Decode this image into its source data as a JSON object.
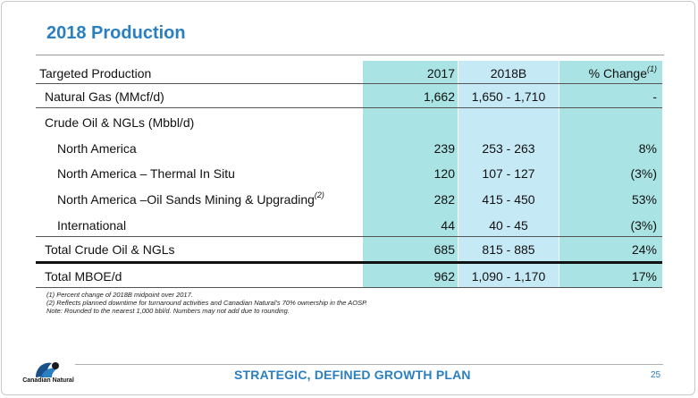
{
  "title": "2018 Production",
  "table": {
    "header": {
      "label": "Targeted Production",
      "c2017": "2017",
      "c2018": "2018B",
      "cpct": "% Change",
      "cpct_note": "(1)"
    },
    "rows": [
      {
        "label": "Natural Gas (MMcf/d)",
        "v2017": "1,662",
        "v2018": "1,650 - 1,710",
        "pct": "-"
      },
      {
        "label": "Crude Oil & NGLs (Mbbl/d)",
        "v2017": "",
        "v2018": "",
        "pct": ""
      },
      {
        "label": "North America",
        "v2017": "239",
        "v2018": "253 - 263",
        "pct": "8%"
      },
      {
        "label": "North America – Thermal In Situ",
        "v2017": "120",
        "v2018": "107 - 127",
        "pct": "(3%)"
      },
      {
        "label": "North America –Oil Sands Mining & Upgrading",
        "note": "(2)",
        "v2017": "282",
        "v2018": "415 - 450",
        "pct": "53%"
      },
      {
        "label": "International",
        "v2017": "44",
        "v2018": "40 - 45",
        "pct": "(3%)"
      },
      {
        "label": "Total Crude Oil & NGLs",
        "v2017": "685",
        "v2018": "815 - 885",
        "pct": "24%"
      },
      {
        "label": "Total MBOE/d",
        "v2017": "962",
        "v2018": "1,090 - 1,170",
        "pct": "17%"
      }
    ]
  },
  "notes": [
    "(1)  Percent change of 2018B midpoint over 2017.",
    "(2)  Reflects planned downtime for turnaround activities and Canadian Natural’s 70% ownership in the AOSP.",
    "Note: Rounded to the nearest 1,000 bbl/d. Numbers may not add due to rounding."
  ],
  "footer": {
    "tagline": "STRATEGIC, DEFINED GROWTH PLAN",
    "page": "25",
    "logo_text": "Canadian Natural"
  },
  "colors": {
    "accent": "#2a7fc1",
    "col_teal": "#a9e3e3",
    "col_light_blue": "#c6e9f6"
  }
}
